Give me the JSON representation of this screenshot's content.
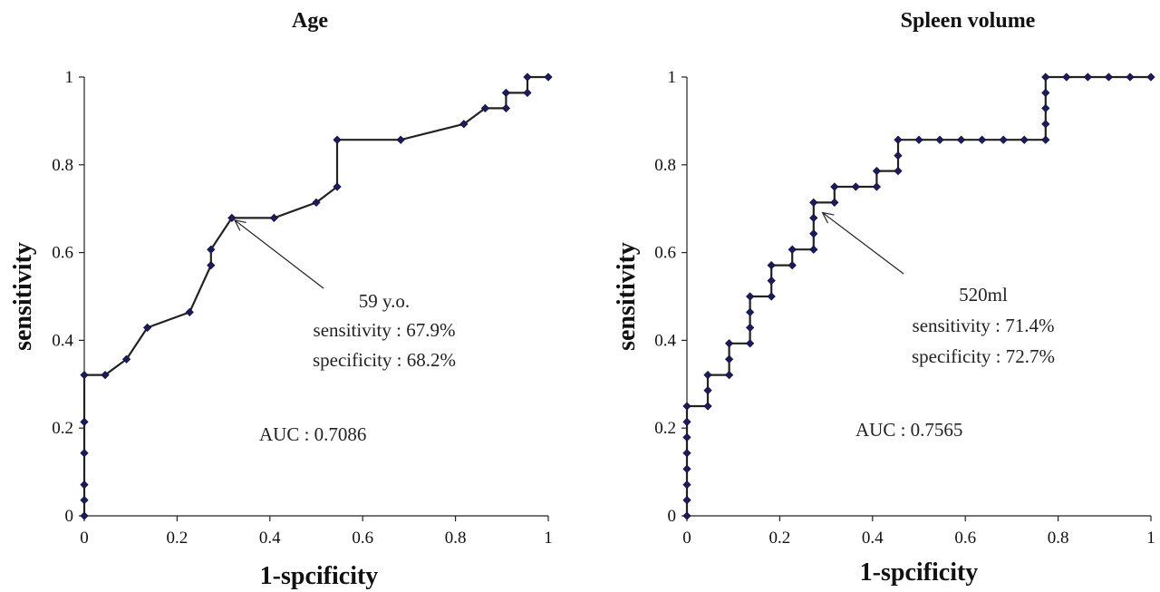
{
  "chart_data": [
    {
      "type": "line",
      "title": "Age",
      "xlabel": "1-spcificity",
      "ylabel": "sensitivity",
      "xlim": [
        0,
        1
      ],
      "ylim": [
        0,
        1
      ],
      "xticks": [
        "0",
        "0.2",
        "0.4",
        "0.6",
        "0.8",
        "1"
      ],
      "yticks": [
        "0",
        "0.2",
        "0.4",
        "0.6",
        "0.8",
        "1"
      ],
      "grid": false,
      "marker_color": "#1a1a66",
      "line_color": "#222222",
      "series": [
        {
          "x": [
            0,
            0,
            0,
            0,
            0,
            0,
            0.045,
            0.091,
            0.136,
            0.227,
            0.273,
            0.273,
            0.318,
            0.409,
            0.5,
            0.545,
            0.545,
            0.682,
            0.818,
            0.864,
            0.909,
            0.909,
            0.955,
            0.955,
            1.0
          ],
          "y": [
            0,
            0.036,
            0.071,
            0.143,
            0.214,
            0.321,
            0.321,
            0.357,
            0.429,
            0.464,
            0.571,
            0.607,
            0.679,
            0.679,
            0.714,
            0.75,
            0.857,
            0.857,
            0.893,
            0.929,
            0.929,
            0.964,
            0.964,
            1.0,
            1.0
          ]
        }
      ],
      "annotation": {
        "lines": [
          "59 y.o.",
          "sensitivity : 67.9%",
          "specificity : 68.2%"
        ],
        "point": [
          0.318,
          0.679
        ]
      },
      "auc_text": "AUC : 0.7086"
    },
    {
      "type": "line",
      "title": "Spleen volume",
      "xlabel": "1-spcificity",
      "ylabel": "sensitivity",
      "xlim": [
        0,
        1
      ],
      "ylim": [
        0,
        1
      ],
      "xticks": [
        "0",
        "0.2",
        "0.4",
        "0.6",
        "0.8",
        "1"
      ],
      "yticks": [
        "0",
        "0.2",
        "0.4",
        "0.6",
        "0.8",
        "1"
      ],
      "grid": false,
      "marker_color": "#1a1a66",
      "line_color": "#222222",
      "series": [
        {
          "x": [
            0,
            0,
            0,
            0,
            0,
            0,
            0,
            0,
            0.045,
            0.045,
            0.045,
            0.091,
            0.091,
            0.091,
            0.136,
            0.136,
            0.136,
            0.136,
            0.182,
            0.182,
            0.182,
            0.227,
            0.227,
            0.273,
            0.273,
            0.273,
            0.273,
            0.318,
            0.318,
            0.364,
            0.409,
            0.409,
            0.455,
            0.455,
            0.455,
            0.5,
            0.545,
            0.591,
            0.636,
            0.682,
            0.727,
            0.773,
            0.773,
            0.773,
            0.773,
            0.773,
            0.818,
            0.864,
            0.909,
            0.955,
            1.0
          ],
          "y": [
            0,
            0.036,
            0.071,
            0.107,
            0.143,
            0.179,
            0.214,
            0.25,
            0.25,
            0.286,
            0.321,
            0.321,
            0.357,
            0.393,
            0.393,
            0.429,
            0.464,
            0.5,
            0.5,
            0.536,
            0.571,
            0.571,
            0.607,
            0.607,
            0.643,
            0.679,
            0.714,
            0.714,
            0.75,
            0.75,
            0.75,
            0.786,
            0.786,
            0.821,
            0.857,
            0.857,
            0.857,
            0.857,
            0.857,
            0.857,
            0.857,
            0.857,
            0.893,
            0.929,
            0.964,
            1.0,
            1.0,
            1.0,
            1.0,
            1.0,
            1.0
          ]
        }
      ],
      "annotation": {
        "lines": [
          "520ml",
          "sensitivity : 71.4%",
          "specificity : 72.7%"
        ],
        "point": [
          0.286,
          0.696
        ]
      },
      "auc_text": "AUC : 0.7565"
    }
  ]
}
